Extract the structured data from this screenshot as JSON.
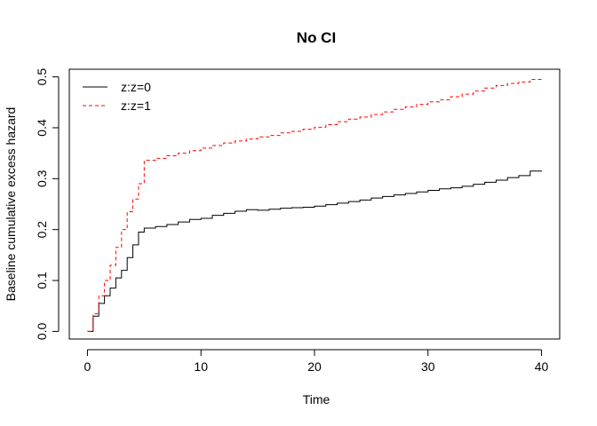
{
  "chart_data": {
    "type": "line",
    "title": "No CI",
    "xlabel": "Time",
    "ylabel": "Baseline cumulative excess hazard",
    "xlim": [
      -1.6,
      41.6
    ],
    "ylim": [
      -0.015,
      0.515
    ],
    "xticks": [
      0,
      10,
      20,
      30,
      40
    ],
    "yticks": [
      0.0,
      0.1,
      0.2,
      0.3,
      0.4,
      0.5
    ],
    "xtick_labels": [
      "0",
      "10",
      "20",
      "30",
      "40"
    ],
    "ytick_labels": [
      "0.0",
      "0.1",
      "0.2",
      "0.3",
      "0.4",
      "0.5"
    ],
    "grid": false,
    "legend_position": "top-left",
    "series": [
      {
        "name": "z:z=0",
        "color": "#000000",
        "dash": "solid",
        "x": [
          0,
          0.5,
          1,
          1.5,
          2,
          2.5,
          3,
          3.5,
          4,
          4.5,
          5,
          6,
          7,
          8,
          9,
          10,
          11,
          12,
          13,
          14,
          15,
          16,
          17,
          18,
          19,
          20,
          21,
          22,
          23,
          24,
          25,
          26,
          27,
          28,
          29,
          30,
          31,
          32,
          33,
          34,
          35,
          36,
          37,
          38,
          39,
          40
        ],
        "y": [
          0.0,
          0.03,
          0.055,
          0.07,
          0.085,
          0.105,
          0.12,
          0.145,
          0.17,
          0.195,
          0.203,
          0.206,
          0.21,
          0.215,
          0.22,
          0.222,
          0.228,
          0.232,
          0.236,
          0.239,
          0.238,
          0.24,
          0.242,
          0.243,
          0.244,
          0.246,
          0.249,
          0.252,
          0.255,
          0.258,
          0.262,
          0.265,
          0.268,
          0.271,
          0.274,
          0.277,
          0.28,
          0.282,
          0.285,
          0.289,
          0.293,
          0.297,
          0.302,
          0.306,
          0.315,
          0.314
        ]
      },
      {
        "name": "z:z=1",
        "color": "#FF0000",
        "dash": "dashed",
        "x": [
          0,
          0.5,
          1,
          1.5,
          2,
          2.5,
          3,
          3.5,
          4,
          4.5,
          5,
          6,
          7,
          8,
          9,
          10,
          11,
          12,
          13,
          14,
          15,
          16,
          17,
          18,
          19,
          20,
          21,
          22,
          23,
          24,
          25,
          26,
          27,
          28,
          29,
          30,
          31,
          32,
          33,
          34,
          35,
          36,
          37,
          38,
          39,
          40
        ],
        "y": [
          0.0,
          0.035,
          0.07,
          0.1,
          0.13,
          0.165,
          0.2,
          0.235,
          0.26,
          0.29,
          0.336,
          0.34,
          0.345,
          0.35,
          0.355,
          0.36,
          0.365,
          0.37,
          0.374,
          0.378,
          0.382,
          0.385,
          0.39,
          0.393,
          0.397,
          0.401,
          0.406,
          0.412,
          0.417,
          0.421,
          0.426,
          0.431,
          0.436,
          0.441,
          0.446,
          0.451,
          0.455,
          0.461,
          0.466,
          0.472,
          0.478,
          0.483,
          0.487,
          0.49,
          0.495,
          0.497
        ]
      }
    ]
  }
}
